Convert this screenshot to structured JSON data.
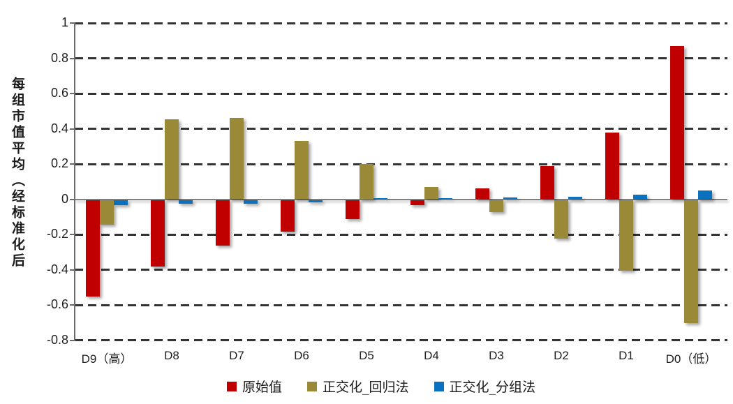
{
  "chart_data": {
    "type": "bar",
    "title": "",
    "xlabel": "",
    "ylabel": "每组市值平均（经标准化后",
    "categories": [
      "D9（高）",
      "D8",
      "D7",
      "D6",
      "D5",
      "D4",
      "D3",
      "D2",
      "D1",
      "D0（低）"
    ],
    "series": [
      {
        "name": "原始值",
        "color": "#c00000",
        "values": [
          -0.55,
          -0.38,
          -0.26,
          -0.18,
          -0.11,
          -0.03,
          0.06,
          0.19,
          0.38,
          0.87
        ]
      },
      {
        "name": "正交化_回归法",
        "color": "#9a8a38",
        "values": [
          -0.14,
          0.455,
          0.46,
          0.33,
          0.2,
          0.07,
          -0.07,
          -0.22,
          -0.4,
          -0.7
        ]
      },
      {
        "name": "正交化_分组法",
        "color": "#0a71bf",
        "values": [
          -0.03,
          -0.02,
          -0.02,
          -0.015,
          0.005,
          0.005,
          0.01,
          0.015,
          0.025,
          0.05
        ]
      }
    ],
    "yticks": [
      1,
      0.8,
      0.6,
      0.4,
      0.2,
      0,
      -0.2,
      -0.4,
      -0.6,
      -0.8
    ],
    "ytick_labels": [
      "1",
      "0.8",
      "0.6",
      "0.4",
      "0.2",
      "0",
      "-0.2",
      "-0.4",
      "-0.6",
      "-0.8"
    ],
    "ylim": [
      -0.8,
      1
    ],
    "grid": "horizontal-dashed",
    "legend_position": "bottom",
    "bar_effect": "drop-shadow"
  },
  "colors": {
    "grid": "#333333",
    "axis": "#6b6b6b",
    "zero_line": "#7f7f7f",
    "text": "#1f1f1f",
    "background": "#ffffff"
  }
}
